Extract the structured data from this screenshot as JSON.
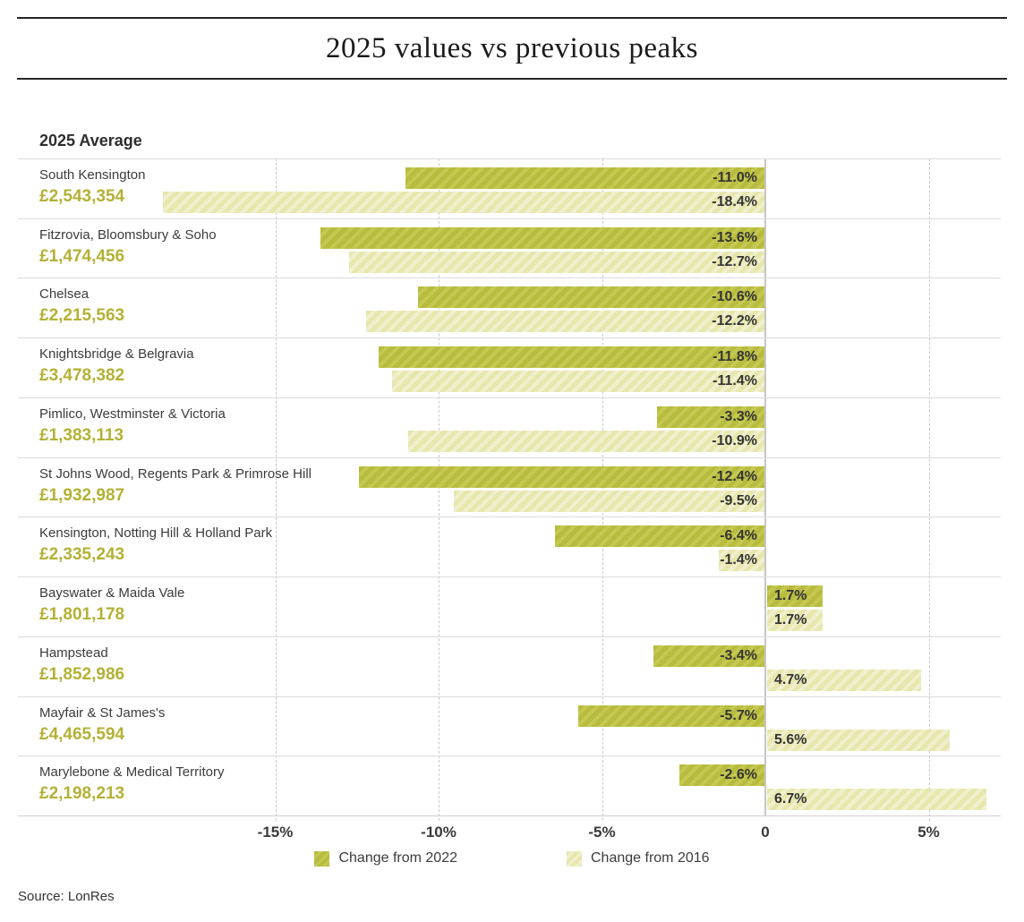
{
  "title": "2025 values vs previous peaks",
  "average_header": "2025 Average",
  "source": "Source: LonRes",
  "colors": {
    "dark_bar_base": "#b8bc3e",
    "dark_bar_stripe": "#c5c851",
    "light_bar_base": "#e7e7ad",
    "light_bar_stripe": "#f0f0cf",
    "price_text": "#b3b135",
    "gridline": "#c9c9c9",
    "row_separator": "#dbdbdb",
    "text_dark": "#3b3b3b"
  },
  "chart_data": {
    "type": "bar",
    "orientation": "horizontal",
    "unit": "percent",
    "title": "2025 values vs previous peaks",
    "categories": [
      "South Kensington",
      "Fitzrovia, Bloomsbury & Soho",
      "Chelsea",
      "Knightsbridge & Belgravia",
      "Pimlico, Westminster & Victoria",
      "St Johns Wood, Regents Park & Primrose Hill",
      "Kensington, Notting Hill & Holland Park",
      "Bayswater & Maida Vale",
      "Hampstead",
      "Mayfair & St James's",
      "Marylebone & Medical Territory"
    ],
    "category_averages": [
      "£2,543,354",
      "£1,474,456",
      "£2,215,563",
      "£3,478,382",
      "£1,383,113",
      "£1,932,987",
      "£2,335,243",
      "£1,801,178",
      "£1,852,986",
      "£4,465,594",
      "£2,198,213"
    ],
    "series": [
      {
        "name": "Change from 2022",
        "style": "dark",
        "values": [
          -11.0,
          -13.6,
          -10.6,
          -11.8,
          -3.3,
          -12.4,
          -6.4,
          1.7,
          -3.4,
          -5.7,
          -2.6
        ]
      },
      {
        "name": "Change from 2016",
        "style": "light",
        "values": [
          -18.4,
          -12.7,
          -12.2,
          -11.4,
          -10.9,
          -9.5,
          -1.4,
          1.7,
          4.7,
          5.6,
          6.7
        ]
      }
    ],
    "x_ticks": [
      {
        "value": -15,
        "label": "-15%"
      },
      {
        "value": -10,
        "label": "-10%"
      },
      {
        "value": -5,
        "label": "-5%"
      },
      {
        "value": 0,
        "label": "0"
      },
      {
        "value": 5,
        "label": "5%"
      }
    ],
    "xlim": [
      -22.9,
      7.2
    ],
    "grid": "vertical-dashed",
    "legend_position": "bottom"
  }
}
